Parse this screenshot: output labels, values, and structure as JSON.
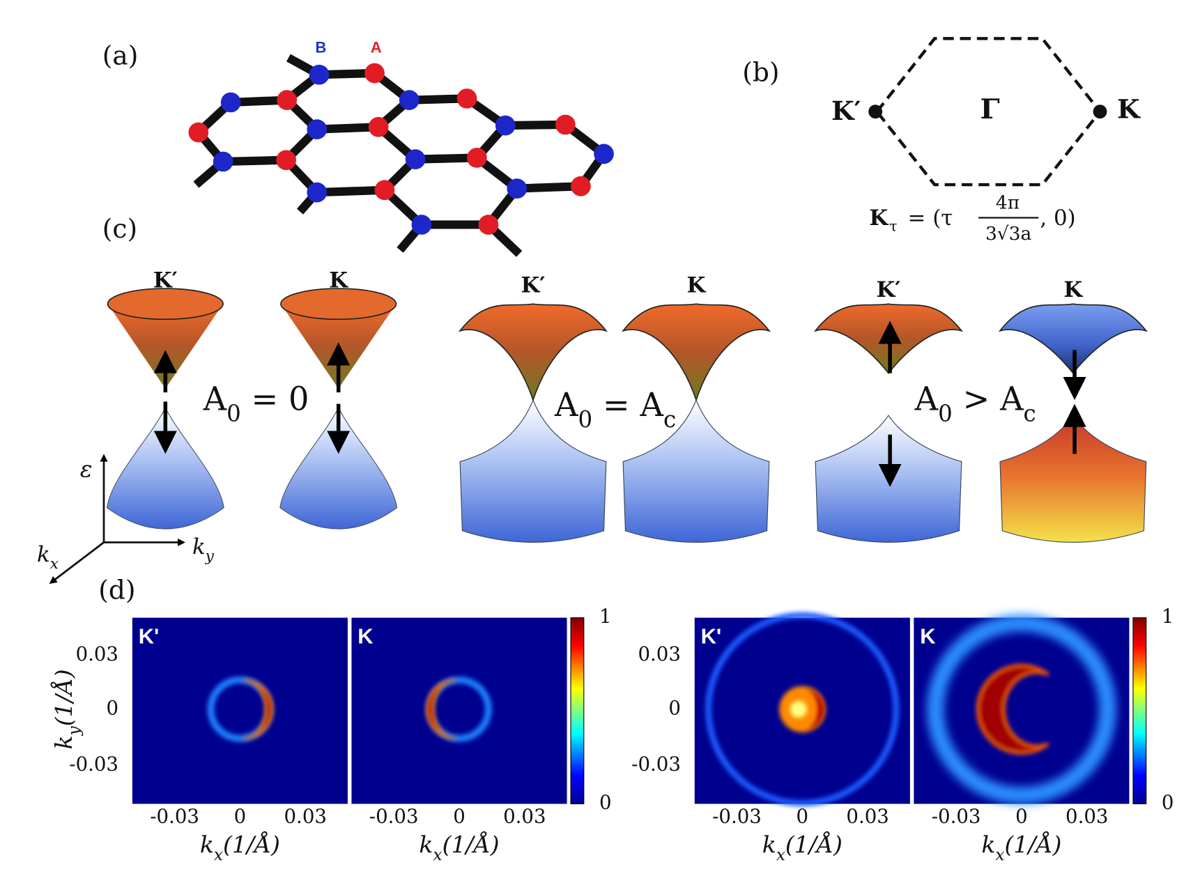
{
  "panel_labels": [
    "(a)",
    "(b)",
    "(c)",
    "(d)"
  ],
  "lattice": {
    "site_labels": [
      "B",
      "A"
    ]
  },
  "brillouin_zone": {
    "points": [
      "K′",
      "Γ",
      "K"
    ],
    "formula": {
      "lhs": "K",
      "lhs_sub": "τ",
      "open": "= (τ",
      "numerator": "4π",
      "denominator": "3√3a",
      "close": ", 0)"
    }
  },
  "band_panels": [
    {
      "valleys": [
        "K′",
        "K"
      ],
      "condition": [
        {
          "text": "A"
        },
        {
          "sub": "0"
        },
        {
          "text": " = 0"
        }
      ]
    },
    {
      "valleys": [
        "K′",
        "K"
      ],
      "condition": [
        {
          "text": "A"
        },
        {
          "sub": "0"
        },
        {
          "text": " = A"
        },
        {
          "sub": "c"
        }
      ]
    },
    {
      "valleys": [
        "K′",
        "K"
      ],
      "condition": [
        {
          "text": "A"
        },
        {
          "sub": "0"
        },
        {
          "text": " > A"
        },
        {
          "sub": "c"
        }
      ]
    }
  ],
  "axes_3d": {
    "energy": "ε",
    "kx": {
      "text": "k",
      "sub": "x"
    },
    "ky": {
      "text": "k",
      "sub": "y"
    }
  },
  "maps": {
    "y_label": {
      "text": "k",
      "sub": "y",
      "unit": "(1/Å)"
    },
    "groups": [
      {
        "y_ticks": [
          "0.03",
          "0",
          "-0.03"
        ],
        "colorbar_ticks": [
          "1",
          "0"
        ],
        "panels": [
          {
            "valley": "K'",
            "x_ticks": [
              "-0.03",
              "0",
              "0.03"
            ],
            "x_label": {
              "text": "k",
              "sub": "x",
              "unit": "(1/Å)"
            }
          },
          {
            "valley": "K",
            "x_ticks": [
              "-0.03",
              "0",
              "0.03"
            ],
            "x_label": {
              "text": "k",
              "sub": "x",
              "unit": "(1/Å)"
            }
          }
        ]
      },
      {
        "y_ticks": [
          "0.03",
          "0",
          "-0.03"
        ],
        "colorbar_ticks": [
          "1",
          "0"
        ],
        "panels": [
          {
            "valley": "K'",
            "x_ticks": [
              "-0.03",
              "0",
              "0.03"
            ],
            "x_label": {
              "text": "k",
              "sub": "x",
              "unit": "(1/Å)"
            }
          },
          {
            "valley": "K",
            "x_ticks": [
              "-0.03",
              "0",
              "0.03"
            ],
            "x_label": {
              "text": "k",
              "sub": "x",
              "unit": "(1/Å)"
            }
          }
        ]
      }
    ]
  }
}
